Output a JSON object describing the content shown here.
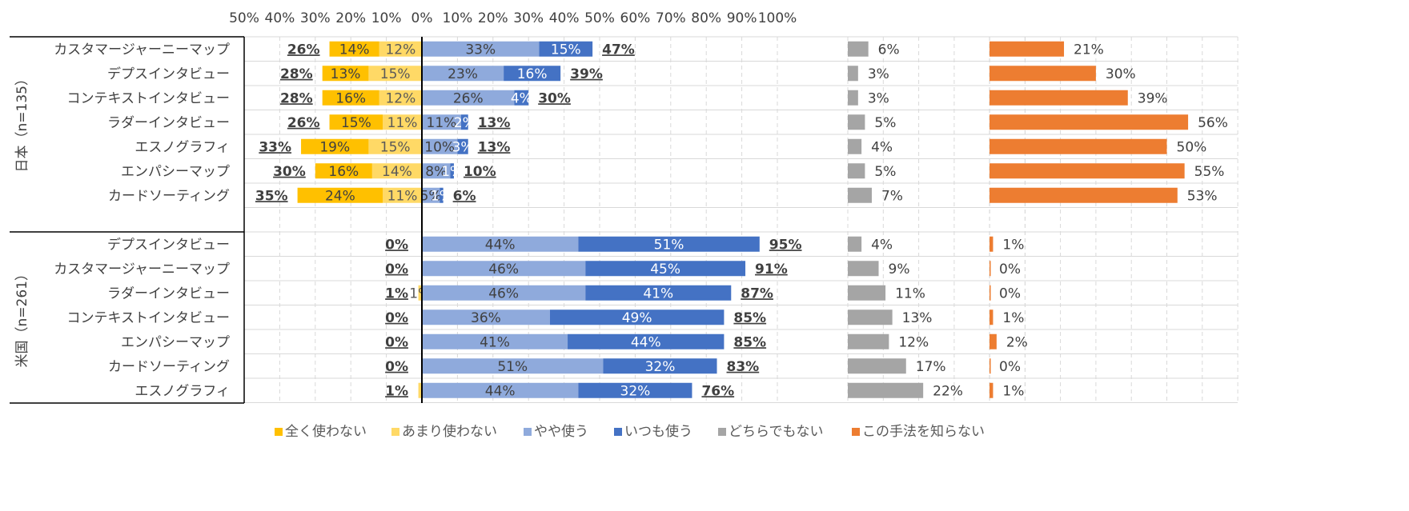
{
  "chart_data": {
    "type": "bar",
    "x_ticks": [
      "50%",
      "40%",
      "30%",
      "20%",
      "10%",
      "0%",
      "10%",
      "20%",
      "30%",
      "40%",
      "50%",
      "60%",
      "70%",
      "80%",
      "90%",
      "100%"
    ],
    "legend": [
      {
        "name": "全く使わない",
        "color": "#FFC000"
      },
      {
        "name": "あまり使わない",
        "color": "#FFD966"
      },
      {
        "name": "やや使う",
        "color": "#8FAADC"
      },
      {
        "name": "いつも使う",
        "color": "#4472C4"
      },
      {
        "name": "どちらでもない",
        "color": "#A5A5A5"
      },
      {
        "name": "この手法を知らない",
        "color": "#ED7D31"
      }
    ],
    "groups": [
      {
        "label": "日本（n=135）",
        "rows": [
          {
            "label": "カスタマージャーニーマップ",
            "never": 14,
            "rarely": 12,
            "somewhat": 33,
            "always": 15,
            "neither": 6,
            "unknown": 21,
            "lab": {
              "never": "14%",
              "rarely": "12%",
              "somewhat": "33%",
              "always": "15%",
              "neither": "6%",
              "unknown": "21%",
              "neg": "26%",
              "pos": "47%"
            }
          },
          {
            "label": "デプスインタビュー",
            "never": 13,
            "rarely": 15,
            "somewhat": 23,
            "always": 16,
            "neither": 3,
            "unknown": 30,
            "lab": {
              "never": "13%",
              "rarely": "15%",
              "somewhat": "23%",
              "always": "16%",
              "neither": "3%",
              "unknown": "30%",
              "neg": "28%",
              "pos": "39%"
            }
          },
          {
            "label": "コンテキストインタビュー",
            "never": 16,
            "rarely": 12,
            "somewhat": 26,
            "always": 4,
            "neither": 3,
            "unknown": 39,
            "lab": {
              "never": "16%",
              "rarely": "12%",
              "somewhat": "26%",
              "always": "4%",
              "neither": "3%",
              "unknown": "39%",
              "neg": "28%",
              "pos": "30%"
            }
          },
          {
            "label": "ラダーインタビュー",
            "never": 15,
            "rarely": 11,
            "somewhat": 11,
            "always": 2,
            "neither": 5,
            "unknown": 56,
            "lab": {
              "never": "15%",
              "rarely": "11%",
              "somewhat": "11%",
              "always": "2%",
              "neither": "5%",
              "unknown": "56%",
              "neg": "26%",
              "pos": "13%"
            }
          },
          {
            "label": "エスノグラフィ",
            "never": 19,
            "rarely": 15,
            "somewhat": 10,
            "always": 3,
            "neither": 4,
            "unknown": 50,
            "lab": {
              "never": "19%",
              "rarely": "15%",
              "somewhat": "10%",
              "always": "3%",
              "neither": "4%",
              "unknown": "50%",
              "neg": "33%",
              "pos": "13%"
            }
          },
          {
            "label": "エンパシーマップ",
            "never": 16,
            "rarely": 14,
            "somewhat": 8,
            "always": 1,
            "neither": 5,
            "unknown": 55,
            "lab": {
              "never": "16%",
              "rarely": "14%",
              "somewhat": "8%",
              "always": "1%",
              "neither": "5%",
              "unknown": "55%",
              "neg": "30%",
              "pos": "10%"
            }
          },
          {
            "label": "カードソーティング",
            "never": 24,
            "rarely": 11,
            "somewhat": 5,
            "always": 1,
            "neither": 7,
            "unknown": 53,
            "lab": {
              "never": "24%",
              "rarely": "11%",
              "somewhat": "5%",
              "always": "1%",
              "neither": "7%",
              "unknown": "53%",
              "neg": "35%",
              "pos": "6%"
            }
          }
        ]
      },
      {
        "label": "米国（n=261）",
        "rows": [
          {
            "label": "デプスインタビュー",
            "never": 0,
            "rarely": 0,
            "somewhat": 44,
            "always": 51,
            "neither": 4,
            "unknown": 1,
            "lab": {
              "never": "",
              "rarely": "",
              "somewhat": "44%",
              "always": "51%",
              "neither": "4%",
              "unknown": "1%",
              "neg": "0%",
              "pos": "95%"
            }
          },
          {
            "label": "カスタマージャーニーマップ",
            "never": 0,
            "rarely": 0,
            "somewhat": 46,
            "always": 45,
            "neither": 9,
            "unknown": 0,
            "lab": {
              "never": "",
              "rarely": "",
              "somewhat": "46%",
              "always": "45%",
              "neither": "9%",
              "unknown": "0%",
              "neg": "0%",
              "pos": "91%"
            }
          },
          {
            "label": "ラダーインタビュー",
            "never": 0,
            "rarely": 1,
            "somewhat": 46,
            "always": 41,
            "neither": 11,
            "unknown": 0,
            "lab": {
              "never": "",
              "rarely": "1%",
              "somewhat": "46%",
              "always": "41%",
              "neither": "11%",
              "unknown": "0%",
              "neg": "1%",
              "pos": "87%"
            }
          },
          {
            "label": "コンテキストインタビュー",
            "never": 0,
            "rarely": 0,
            "somewhat": 36,
            "always": 49,
            "neither": 13,
            "unknown": 1,
            "lab": {
              "never": "",
              "rarely": "",
              "somewhat": "36%",
              "always": "49%",
              "neither": "13%",
              "unknown": "1%",
              "neg": "0%",
              "pos": "85%"
            }
          },
          {
            "label": "エンパシーマップ",
            "never": 0,
            "rarely": 0,
            "somewhat": 41,
            "always": 44,
            "neither": 12,
            "unknown": 2,
            "lab": {
              "never": "",
              "rarely": "",
              "somewhat": "41%",
              "always": "44%",
              "neither": "12%",
              "unknown": "2%",
              "neg": "0%",
              "pos": "85%"
            }
          },
          {
            "label": "カードソーティング",
            "never": 0,
            "rarely": 0,
            "somewhat": 51,
            "always": 32,
            "neither": 17,
            "unknown": 0,
            "lab": {
              "never": "",
              "rarely": "",
              "somewhat": "51%",
              "always": "32%",
              "neither": "17%",
              "unknown": "0%",
              "neg": "0%",
              "pos": "83%"
            }
          },
          {
            "label": "エスノグラフィ",
            "never": 0,
            "rarely": 1,
            "somewhat": 44,
            "always": 32,
            "neither": 22,
            "unknown": 1,
            "lab": {
              "never": "",
              "rarely": "",
              "somewhat": "44%",
              "always": "32%",
              "neither": "22%",
              "unknown": "1%",
              "neg": "1%",
              "pos": "76%"
            }
          }
        ]
      }
    ]
  }
}
